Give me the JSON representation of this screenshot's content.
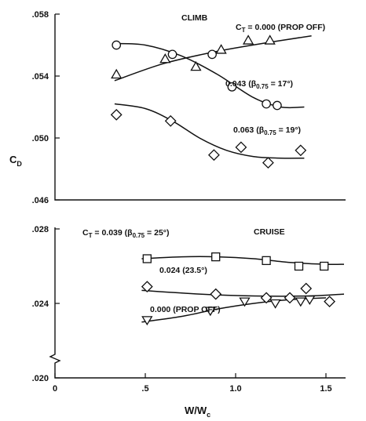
{
  "chart_data": [
    {
      "type": "scatter",
      "panel": "top",
      "ylabel": "C",
      "ylabel_sub": "D",
      "xlim": [
        0,
        1.6
      ],
      "ylim": [
        0.046,
        0.058
      ],
      "ytick_values": [
        0.046,
        0.05,
        0.054,
        0.058
      ],
      "yticks": [
        ".046",
        ".050",
        ".054",
        ".058"
      ],
      "title": "CLIMB",
      "series": [
        {
          "name": "C_T = 0.000 (PROP OFF)",
          "marker": "triangle",
          "x": [
            0.34,
            0.61,
            0.78,
            0.92,
            1.07,
            1.19
          ],
          "y": [
            0.0541,
            0.0551,
            0.0546,
            0.0557,
            0.0563,
            0.0563
          ],
          "fit": [
            [
              0.33,
              0.0537
            ],
            [
              0.6,
              0.0548
            ],
            [
              0.9,
              0.0556
            ],
            [
              1.2,
              0.0562
            ],
            [
              1.42,
              0.0566
            ]
          ]
        },
        {
          "name": "0.043 (β0.75 = 17°)",
          "marker": "circle",
          "x": [
            0.34,
            0.65,
            0.87,
            0.98,
            1.17,
            1.23
          ],
          "y": [
            0.056,
            0.0554,
            0.0554,
            0.0533,
            0.0522,
            0.0521
          ],
          "fit": [
            [
              0.33,
              0.0561
            ],
            [
              0.5,
              0.056
            ],
            [
              0.7,
              0.0553
            ],
            [
              0.9,
              0.0541
            ],
            [
              1.1,
              0.0526
            ],
            [
              1.25,
              0.052
            ],
            [
              1.38,
              0.052
            ]
          ]
        },
        {
          "name": "0.063 (β0.75 = 19°)",
          "marker": "diamond",
          "x": [
            0.34,
            0.64,
            0.88,
            1.03,
            1.18,
            1.36
          ],
          "y": [
            0.0515,
            0.0511,
            0.0489,
            0.0494,
            0.0484,
            0.0492
          ],
          "fit": [
            [
              0.33,
              0.0522
            ],
            [
              0.5,
              0.0519
            ],
            [
              0.65,
              0.0511
            ],
            [
              0.8,
              0.05
            ],
            [
              0.95,
              0.0492
            ],
            [
              1.1,
              0.0488
            ],
            [
              1.25,
              0.0487
            ],
            [
              1.38,
              0.0487
            ]
          ]
        }
      ],
      "labels": {
        "title": "CLIMB",
        "ct_prefix": "C",
        "ct_sub": "T",
        "s1": " = 0.000 (PROP OFF)",
        "s2_main": "0.043 (β",
        "s2_sub": "0.75",
        "s2_tail": " = 17°)",
        "s3_main": "0.063 (β",
        "s3_sub": "0.75",
        "s3_tail": " = 19°)"
      }
    },
    {
      "type": "scatter",
      "panel": "bottom",
      "xlabel": "W/W",
      "xlabel_sub": "c",
      "xlim": [
        0,
        1.6
      ],
      "ylim": [
        0.02,
        0.028
      ],
      "xtick_values": [
        0,
        0.5,
        1.0,
        1.5
      ],
      "xticks": [
        "0",
        ".5",
        "1.0",
        "1.5"
      ],
      "ytick_values": [
        0.02,
        0.024,
        0.028
      ],
      "yticks": [
        ".020",
        ".024",
        ".028"
      ],
      "title": "CRUISE",
      "series": [
        {
          "name": "C_T = 0.039 (β0.75 = 25°)",
          "marker": "square",
          "x": [
            0.51,
            0.89,
            1.17,
            1.35,
            1.49
          ],
          "y": [
            0.0264,
            0.0265,
            0.0263,
            0.026,
            0.026
          ],
          "fit": [
            [
              0.48,
              0.0264
            ],
            [
              0.7,
              0.0265
            ],
            [
              0.9,
              0.0265
            ],
            [
              1.1,
              0.0264
            ],
            [
              1.3,
              0.0262
            ],
            [
              1.5,
              0.0261
            ],
            [
              1.6,
              0.0261
            ]
          ]
        },
        {
          "name": "0.024 (23.5°)",
          "marker": "diamond",
          "x": [
            0.51,
            0.89,
            1.17,
            1.3,
            1.39,
            1.52
          ],
          "y": [
            0.0249,
            0.0245,
            0.0243,
            0.0243,
            0.0248,
            0.0241
          ],
          "fit": [
            [
              0.48,
              0.0247
            ],
            [
              0.8,
              0.0245
            ],
            [
              1.1,
              0.0244
            ],
            [
              1.4,
              0.0244
            ],
            [
              1.6,
              0.0245
            ]
          ]
        },
        {
          "name": "0.000 (PROP OFF)",
          "marker": "triangle-down",
          "x": [
            0.51,
            0.86,
            1.05,
            1.22,
            1.36,
            1.41
          ],
          "y": [
            0.0231,
            0.0236,
            0.0241,
            0.024,
            0.0241,
            0.0242
          ],
          "fit": [
            [
              0.48,
              0.023
            ],
            [
              0.7,
              0.0233
            ],
            [
              0.9,
              0.0237
            ],
            [
              1.1,
              0.024
            ],
            [
              1.3,
              0.0242
            ],
            [
              1.5,
              0.0243
            ]
          ]
        }
      ],
      "labels": {
        "title": "CRUISE",
        "ct_prefix": "C",
        "ct_sub": "T",
        "s1_main": " = 0.039 (β",
        "s1_sub": "0.75",
        "s1_tail": " = 25°)",
        "s2": "0.024 (23.5°)",
        "s3": "0.000  (PROP OFF)"
      }
    }
  ]
}
